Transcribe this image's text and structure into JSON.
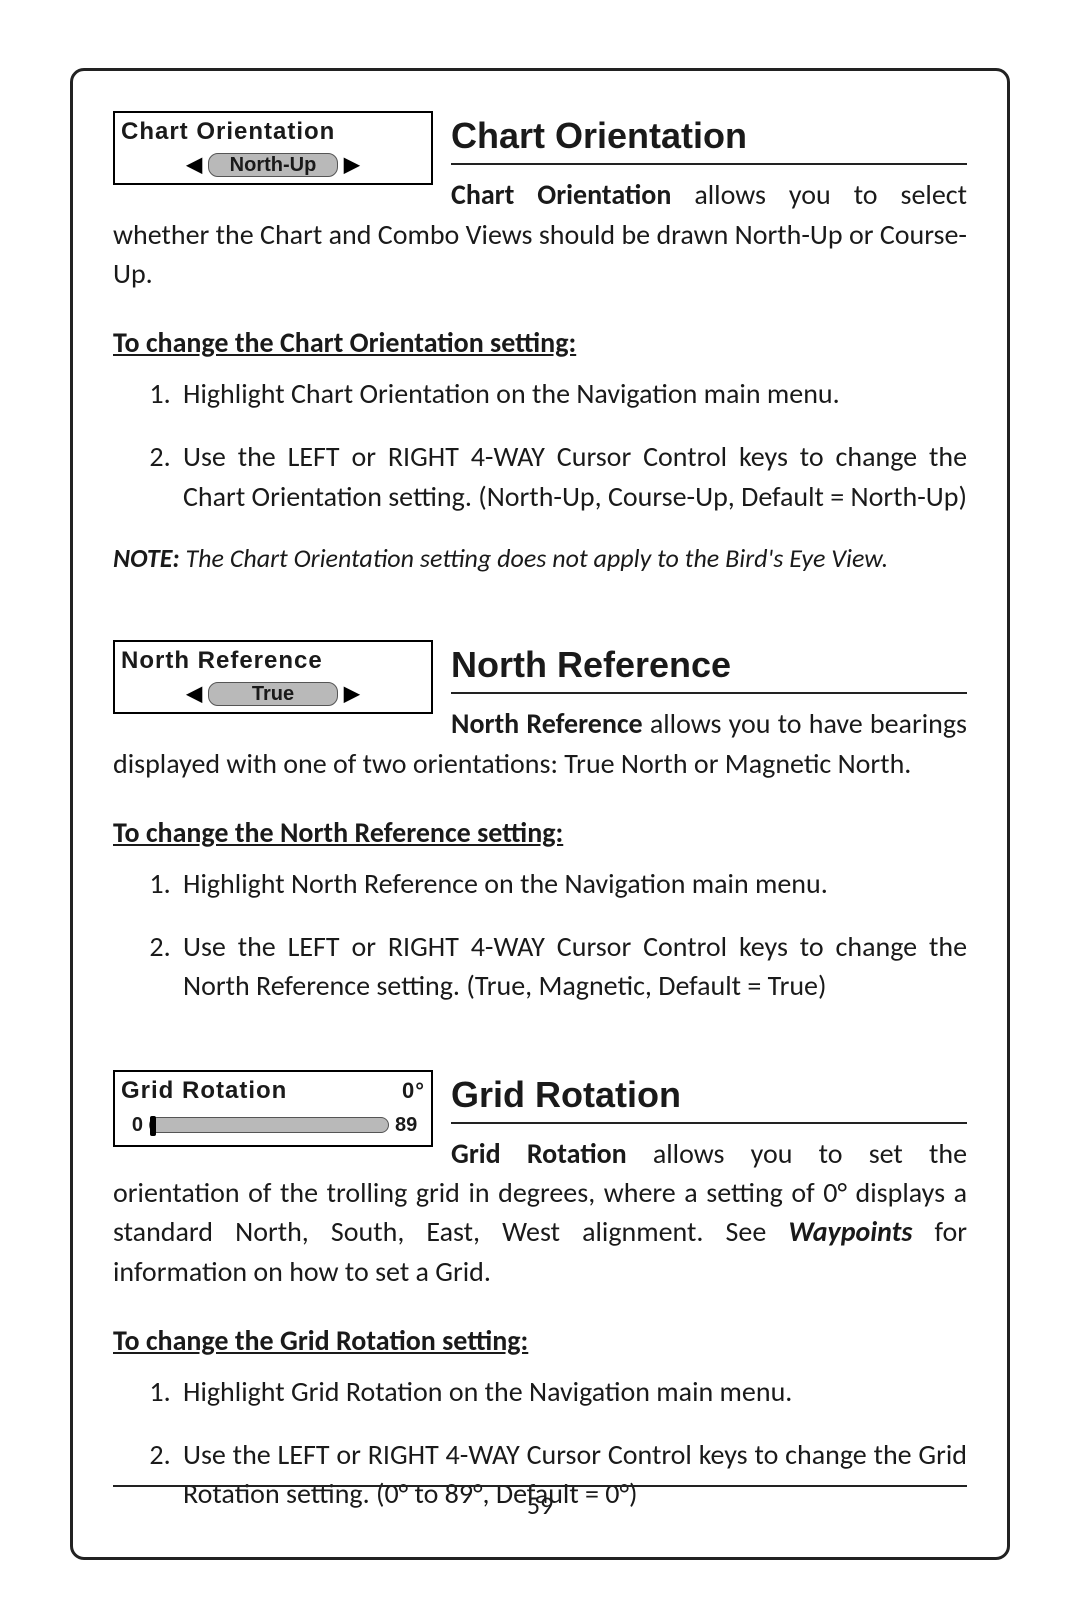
{
  "page_number": "59",
  "sections": [
    {
      "widget": {
        "type": "selector",
        "title": "Chart Orientation",
        "value": "North-Up"
      },
      "title": "Chart Orientation",
      "intro_lead": "Chart Orientation",
      "intro_rest": " allows you to select whether the Chart and Combo Views should be drawn North-Up or Course-Up.",
      "subhead": "To change the Chart Orientation setting:",
      "steps": [
        "Highlight Chart Orientation on the Navigation main menu.",
        "Use the LEFT or RIGHT 4-WAY Cursor Control keys to change the Chart Orientation setting. (North-Up, Course-Up, Default = North-Up)"
      ],
      "note_label": "NOTE:",
      "note_text": "  The Chart Orientation setting does not apply to the Bird's Eye View."
    },
    {
      "widget": {
        "type": "selector",
        "title": "North Reference",
        "value": "True"
      },
      "title": "North Reference",
      "intro_lead": "North Reference",
      "intro_rest": " allows you to have bearings displayed with one of two orientations: True North or Magnetic North.",
      "subhead": "To change the North Reference setting:",
      "steps": [
        "Highlight North Reference on the Navigation main menu.",
        "Use the LEFT or RIGHT 4-WAY Cursor Control keys to change the North Reference setting. (True, Magnetic, Default = True)"
      ]
    },
    {
      "widget": {
        "type": "slider",
        "title": "Grid Rotation",
        "right_value": "0°",
        "min": "0",
        "max": "89"
      },
      "title": "Grid Rotation",
      "intro_lead": "Grid Rotation",
      "intro_rest_before": " allows you to set the orientation of the trolling grid in degrees, where a setting of 0° displays a standard North, South, East, West alignment. See ",
      "intro_strong": "Waypoints",
      "intro_rest_after": " for information on how to set a Grid.",
      "subhead": "To change the Grid Rotation setting:",
      "steps": [
        "Highlight Grid Rotation on the Navigation main menu.",
        "Use the LEFT or RIGHT 4-WAY Cursor Control keys to change the Grid Rotation setting. (0° to 89°, Default = 0°)"
      ]
    }
  ]
}
